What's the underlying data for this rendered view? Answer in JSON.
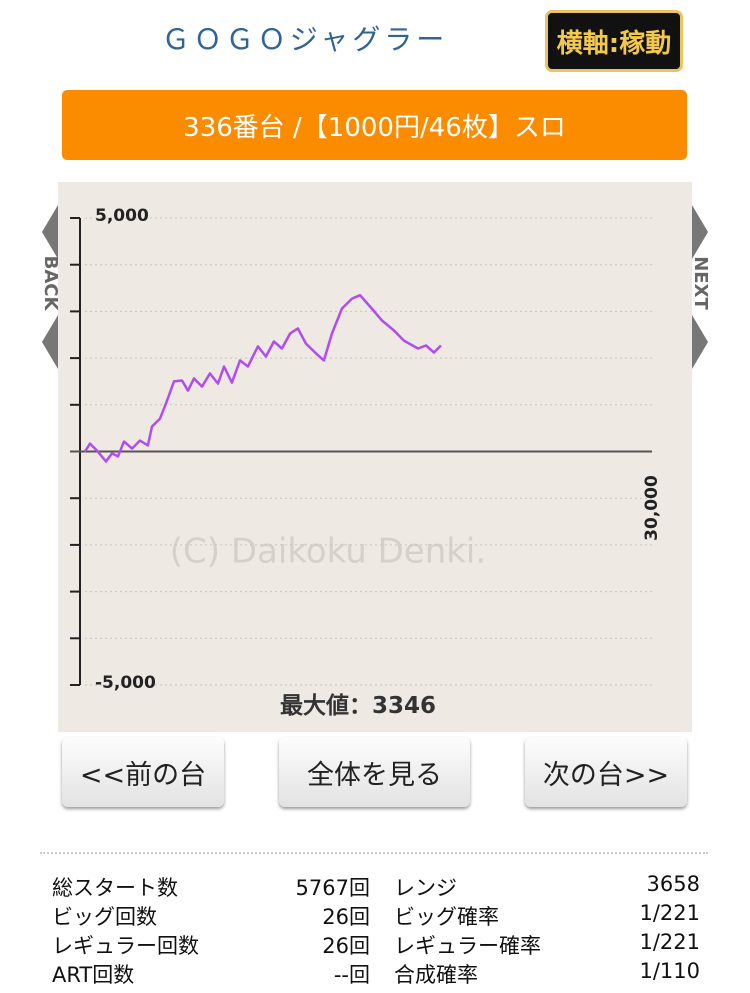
{
  "header": {
    "title": "ＧＯＧＯジャグラー",
    "axis_button": "横軸:稼動"
  },
  "banner": "336番台 /【1000円/46枚】スロ",
  "nav": {
    "back": "BACK",
    "next": "NEXT"
  },
  "chart_data": {
    "type": "line",
    "watermark": "(C) Daikoku Denki.",
    "x": [
      0,
      265,
      635,
      1110,
      1430,
      1745,
      2065,
      2490,
      2910,
      3330,
      3545,
      3970,
      4285,
      4710,
      5130,
      5450,
      5765,
      6190,
      6610,
      7035,
      7355,
      7775,
      8200,
      8620,
      9150,
      9570,
      9995,
      10420,
      10845,
      11265,
      11690,
      12220,
      12640,
      13065,
      13595,
      14125,
      14550,
      15080,
      15715,
      16350,
      16875,
      17620,
      18040,
      18465,
      18830
    ],
    "values": [
      0,
      170,
      20,
      -215,
      -40,
      -105,
      215,
      65,
      235,
      130,
      535,
      705,
      1030,
      1500,
      1520,
      1305,
      1565,
      1390,
      1670,
      1455,
      1820,
      1475,
      1950,
      1820,
      2250,
      2035,
      2355,
      2205,
      2525,
      2635,
      2310,
      2100,
      1950,
      2525,
      3060,
      3275,
      3346,
      3105,
      2805,
      2590,
      2375,
      2205,
      2270,
      2120,
      2270
    ],
    "color": "#b04cf2",
    "xlim": [
      0,
      30000
    ],
    "xticks": [
      {
        "value": 30000,
        "label": "30,000"
      }
    ],
    "ylim": [
      -5000,
      5000
    ],
    "yticks": [
      {
        "value": 5000,
        "label": "5,000"
      },
      {
        "value": -5000,
        "label": "-5,000"
      }
    ],
    "ygrid": [
      4000,
      3000,
      2000,
      1000,
      0,
      -1000,
      -2000,
      -3000,
      -4000
    ],
    "max_label": "最大値：",
    "max_value": 3346
  },
  "buttons": [
    "<<前の台",
    "全体を見る",
    "次の台>>"
  ],
  "stats": {
    "rows": [
      [
        "総スタート数",
        "5767回",
        "レンジ",
        "3658"
      ],
      [
        "ビッグ回数",
        "26回",
        "ビッグ確率",
        "1/221"
      ],
      [
        "レギュラー回数",
        "26回",
        "レギュラー確率",
        "1/221"
      ],
      [
        "ART回数",
        "--回",
        "合成確率",
        "1/110"
      ]
    ]
  }
}
